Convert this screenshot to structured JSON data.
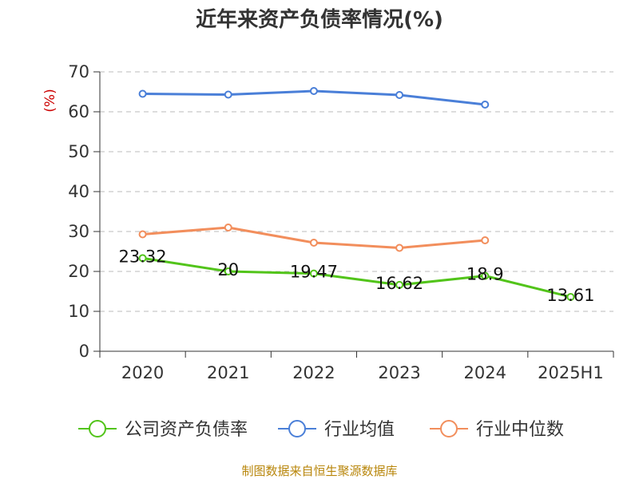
{
  "chart_data": {
    "type": "line",
    "title": "近年来资产负债率情况(%)",
    "ylabel": "(%)",
    "categories": [
      "2020",
      "2021",
      "2022",
      "2023",
      "2024",
      "2025H1"
    ],
    "ylim": [
      0,
      70
    ],
    "yticks": [
      0,
      10,
      20,
      30,
      40,
      50,
      60,
      70
    ],
    "grid": "horizontal-dashed",
    "legend_position": "bottom",
    "series": [
      {
        "name": "公司资产负债率",
        "color": "#52c41a",
        "values": [
          23.32,
          20,
          19.47,
          16.62,
          18.9,
          13.61
        ],
        "labels": [
          "23.32",
          "20",
          "19.47",
          "16.62",
          "18.9",
          "13.61"
        ]
      },
      {
        "name": "行业均值",
        "color": "#4a7fd8",
        "values": [
          64.5,
          64.3,
          65.2,
          64.2,
          61.8,
          null
        ]
      },
      {
        "name": "行业中位数",
        "color": "#f28e5c",
        "values": [
          29.3,
          31.0,
          27.2,
          25.9,
          27.8,
          null
        ]
      }
    ],
    "source": "制图数据来自恒生聚源数据库"
  }
}
